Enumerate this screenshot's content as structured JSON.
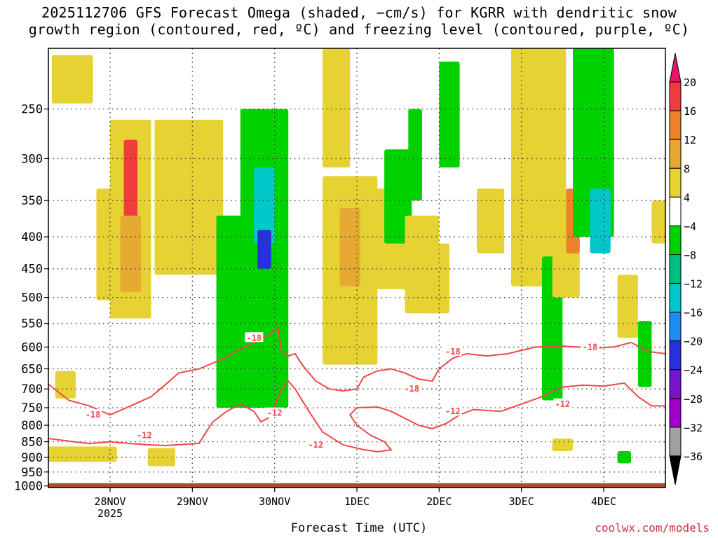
{
  "title": {
    "line1": "2025112706 GFS Forecast Omega (shaded, −cm/s) for KGRR with dendritic snow",
    "line2": "growth region (contoured, red, ºC) and freezing level (contoured, purple, ºC)"
  },
  "credit": "coolwx.com/models",
  "chart_data": {
    "type": "heatmap",
    "title": "2025112706 GFS Forecast Omega (shaded, −cm/s) for KGRR with dendritic snow growth region (contoured, red, ºC) and freezing level (contoured, purple, ºC)",
    "xlabel": "Forecast Time (UTC)",
    "ylabel": "",
    "x_ticks": [
      {
        "label": "28NOV",
        "sub": "2025",
        "hours": 18
      },
      {
        "label": "29NOV",
        "sub": "",
        "hours": 42
      },
      {
        "label": "30NOV",
        "sub": "",
        "hours": 66
      },
      {
        "label": "1DEC",
        "sub": "",
        "hours": 90
      },
      {
        "label": "2DEC",
        "sub": "",
        "hours": 114
      },
      {
        "label": "3DEC",
        "sub": "",
        "hours": 138
      },
      {
        "label": "4DEC",
        "sub": "",
        "hours": 162
      }
    ],
    "xlim_hours": [
      0,
      180
    ],
    "y_ticks": [
      250,
      300,
      350,
      400,
      450,
      500,
      550,
      600,
      650,
      700,
      750,
      800,
      850,
      900,
      950,
      1000
    ],
    "ylim_hPa": [
      1000,
      200
    ],
    "colorbar": {
      "levels": [
        "20",
        "16",
        "12",
        "8",
        "4",
        "−4",
        "−8",
        "−12",
        "−16",
        "−20",
        "−24",
        "−28",
        "−32",
        "−36"
      ],
      "colors": [
        "#e8146e",
        "#f03c3c",
        "#ee8228",
        "#e6aa32",
        "#e6d232",
        "#ffffff",
        "#00d200",
        "#00be82",
        "#00c8c8",
        "#1e8cf0",
        "#2832dc",
        "#7814c8",
        "#a000c8",
        "#a0a0a0",
        "#000000"
      ]
    },
    "contours": {
      "labels": [
        "-18",
        "-18",
        "-18",
        "-18",
        "-18",
        "-12",
        "-12",
        "-12",
        "-12",
        "-12"
      ],
      "color": "#f04848"
    },
    "omega_regions": [
      {
        "t": 7,
        "p": 225,
        "w": 6,
        "h": 40,
        "v": 5
      },
      {
        "t": 5,
        "p": 690,
        "w": 3,
        "h": 70,
        "v": 5
      },
      {
        "t": 8,
        "p": 890,
        "w": 12,
        "h": 50,
        "v": 5
      },
      {
        "t": 24,
        "p": 400,
        "w": 6,
        "h": 280,
        "v": 7
      },
      {
        "t": 24,
        "p": 330,
        "w": 2,
        "h": 100,
        "v": 16
      },
      {
        "t": 24,
        "p": 430,
        "w": 3,
        "h": 120,
        "v": 11
      },
      {
        "t": 17,
        "p": 420,
        "w": 3,
        "h": 170,
        "v": 5
      },
      {
        "t": 33,
        "p": 900,
        "w": 4,
        "h": 60,
        "v": 5
      },
      {
        "t": 41,
        "p": 360,
        "w": 10,
        "h": 200,
        "v": 5
      },
      {
        "t": 54,
        "p": 560,
        "w": 5,
        "h": 380,
        "v": -5
      },
      {
        "t": 63,
        "p": 500,
        "w": 7,
        "h": 500,
        "v": -6
      },
      {
        "t": 63,
        "p": 360,
        "w": 3,
        "h": 100,
        "v": -12
      },
      {
        "t": 63,
        "p": 420,
        "w": 2,
        "h": 60,
        "v": -20
      },
      {
        "t": 88,
        "p": 480,
        "w": 8,
        "h": 320,
        "v": 6
      },
      {
        "t": 88,
        "p": 420,
        "w": 3,
        "h": 120,
        "v": 11
      },
      {
        "t": 84,
        "p": 250,
        "w": 4,
        "h": 120,
        "v": 5
      },
      {
        "t": 99,
        "p": 410,
        "w": 6,
        "h": 150,
        "v": 5
      },
      {
        "t": 102,
        "p": 350,
        "w": 4,
        "h": 120,
        "v": -7
      },
      {
        "t": 107,
        "p": 300,
        "w": 2,
        "h": 100,
        "v": -6
      },
      {
        "t": 109,
        "p": 450,
        "w": 5,
        "h": 160,
        "v": 5
      },
      {
        "t": 113,
        "p": 470,
        "w": 4,
        "h": 120,
        "v": 5
      },
      {
        "t": 117,
        "p": 260,
        "w": 3,
        "h": 100,
        "v": -7
      },
      {
        "t": 129,
        "p": 380,
        "w": 4,
        "h": 90,
        "v": 5
      },
      {
        "t": 143,
        "p": 330,
        "w": 8,
        "h": 300,
        "v": 5
      },
      {
        "t": 147,
        "p": 580,
        "w": 3,
        "h": 300,
        "v": -7
      },
      {
        "t": 151,
        "p": 420,
        "w": 4,
        "h": 160,
        "v": 5
      },
      {
        "t": 153,
        "p": 380,
        "w": 2,
        "h": 90,
        "v": 12
      },
      {
        "t": 159,
        "p": 300,
        "w": 6,
        "h": 200,
        "v": -7
      },
      {
        "t": 161,
        "p": 380,
        "w": 3,
        "h": 90,
        "v": -14
      },
      {
        "t": 169,
        "p": 520,
        "w": 3,
        "h": 120,
        "v": 5
      },
      {
        "t": 174,
        "p": 620,
        "w": 2,
        "h": 150,
        "v": -7
      },
      {
        "t": 178,
        "p": 380,
        "w": 2,
        "h": 60,
        "v": 5
      },
      {
        "t": 168,
        "p": 900,
        "w": 2,
        "h": 40,
        "v": -7
      },
      {
        "t": 150,
        "p": 860,
        "w": 3,
        "h": 40,
        "v": 5
      }
    ],
    "ground_color": "#a0522d"
  }
}
